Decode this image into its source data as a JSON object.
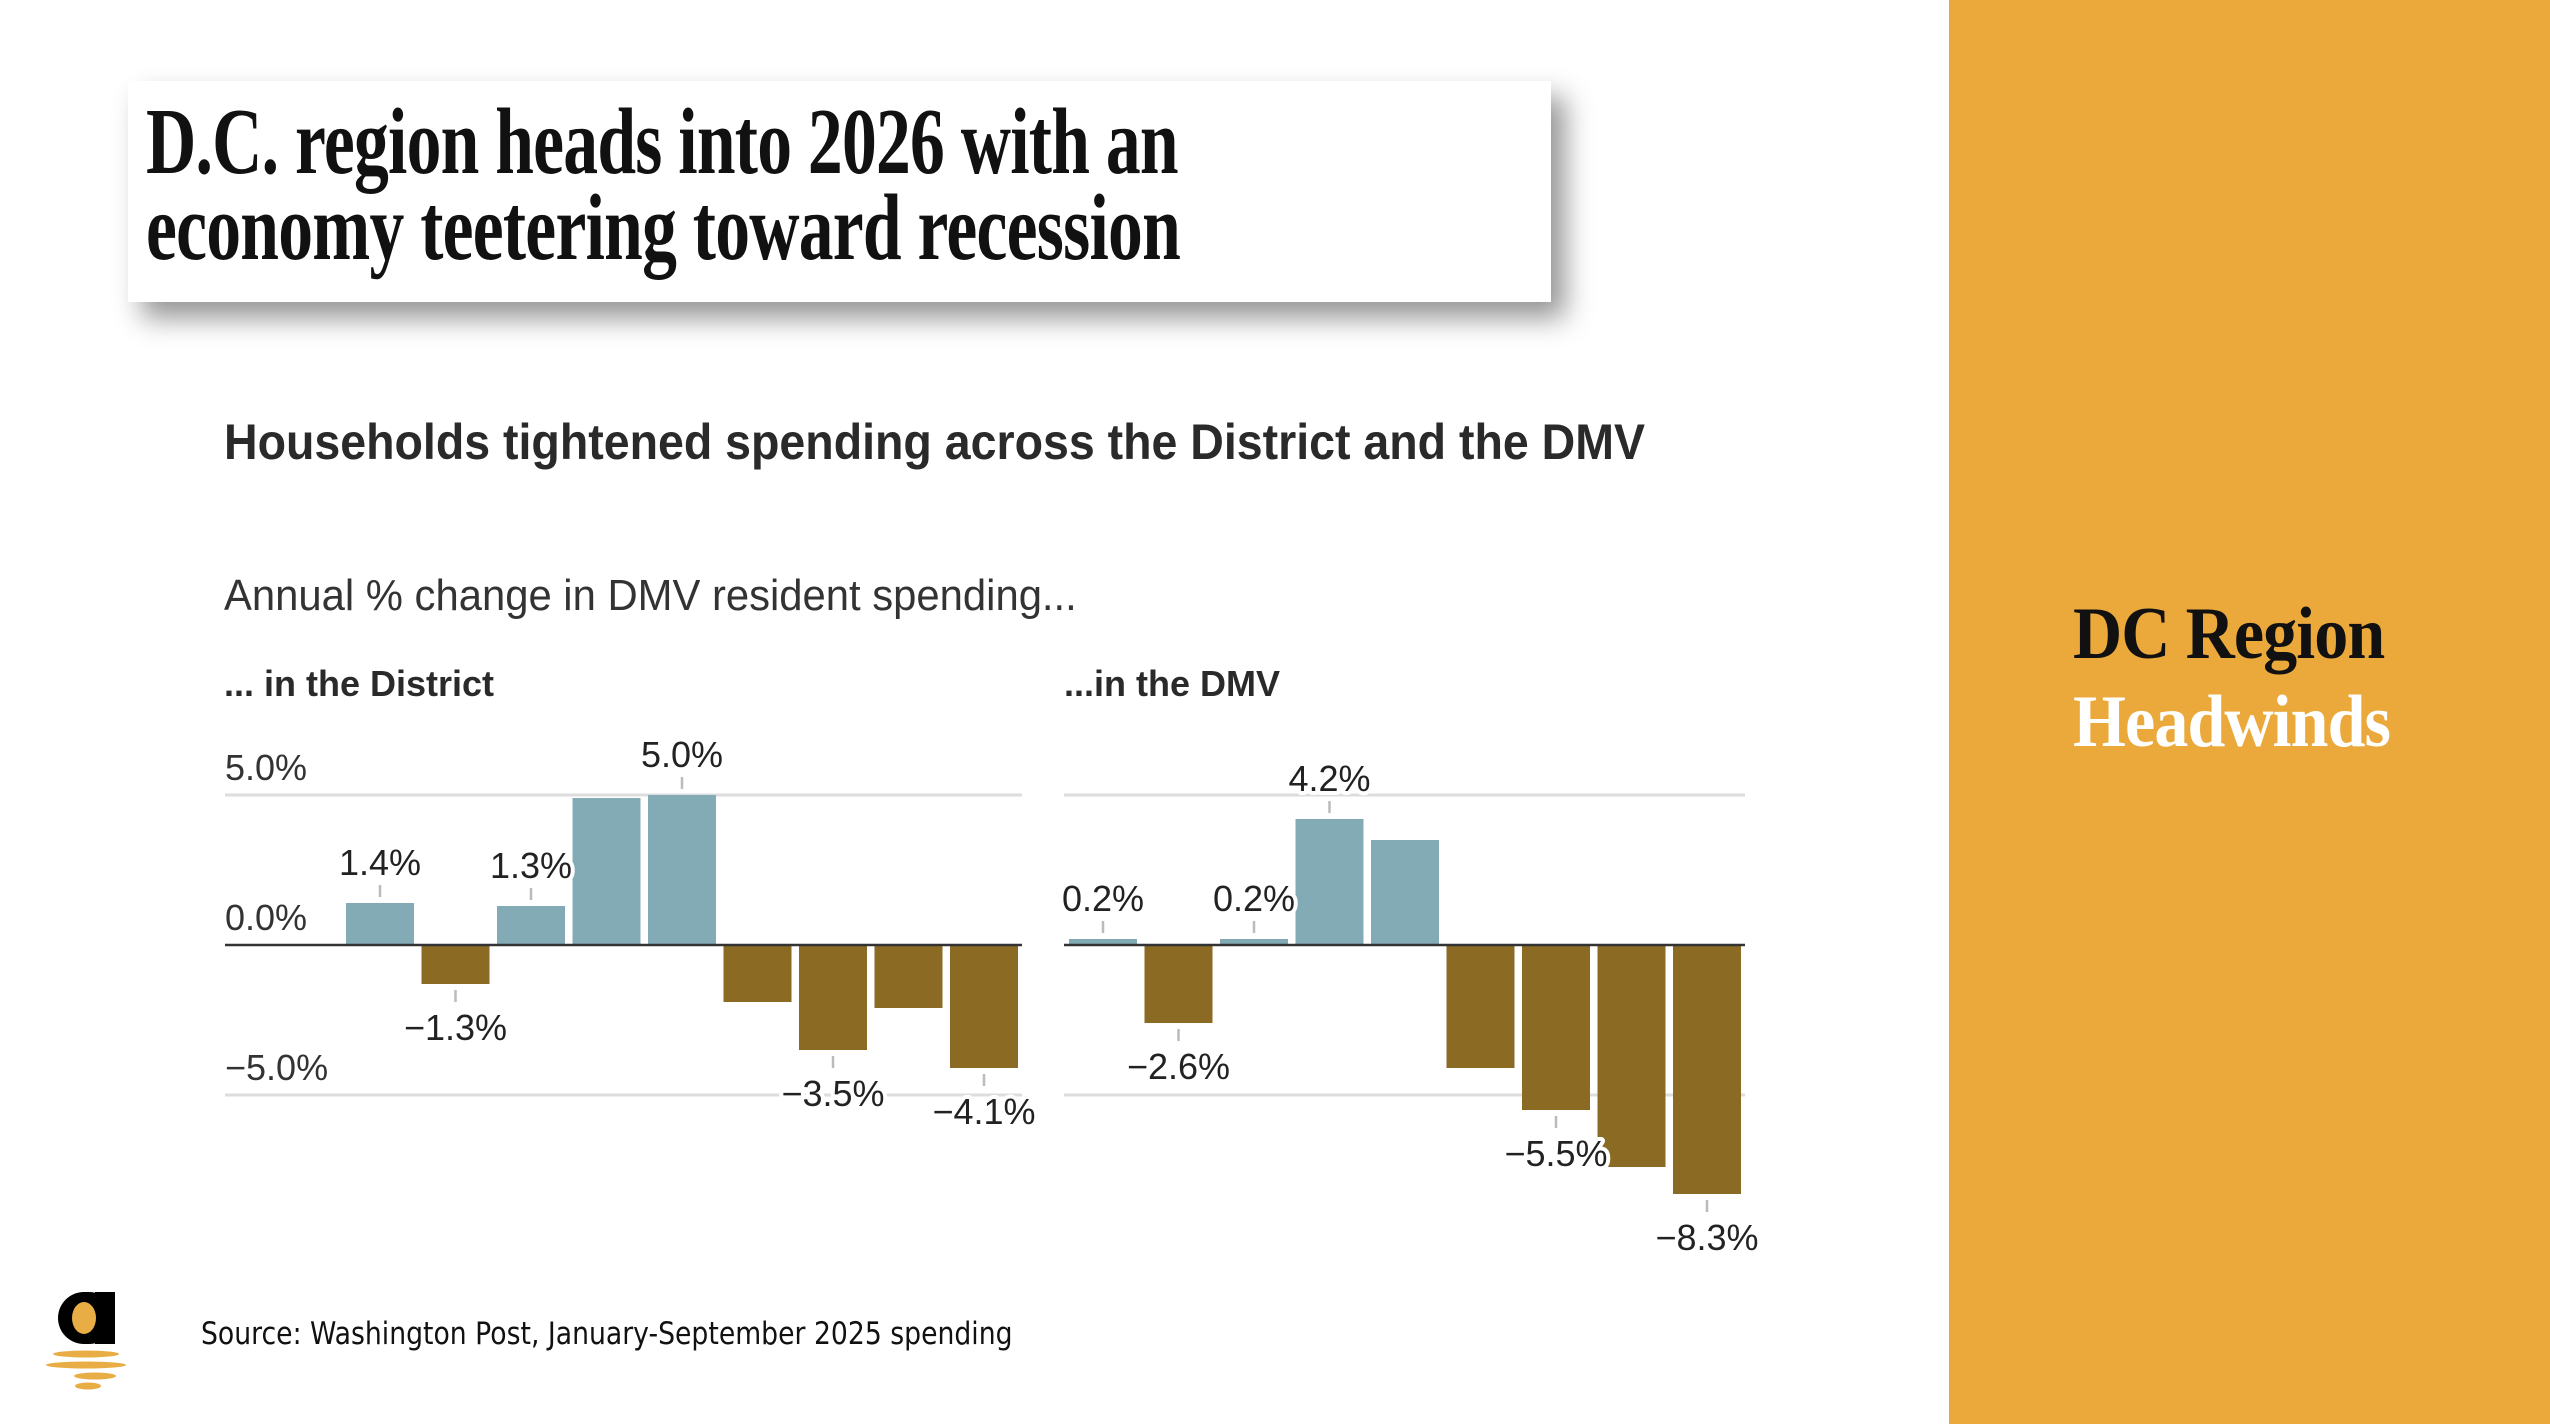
{
  "headline": {
    "line1": "D.C. region heads into 2026 with an",
    "line2": "economy teetering toward recession"
  },
  "side_panel": {
    "line1": "DC Region",
    "line2": "Headwinds",
    "background_color": "#EBA93C"
  },
  "logo": {
    "icon": "letter-a-sunset-logo-icon"
  },
  "source": "Source: Washington Post, January-September 2025 spending",
  "colors": {
    "positive": "#83ABB5",
    "negative": "#8B6A24"
  },
  "chart_data": {
    "type": "bar",
    "title": "Households tightened spending across the District and the DMV",
    "subtitle": "Annual % change in DMV resident spending...",
    "ylim": [
      -5,
      5
    ],
    "yticks": [
      5,
      0,
      -5
    ],
    "ytick_labels": [
      "5.0%",
      "0.0%",
      "−5.0%"
    ],
    "grid": true,
    "panels": [
      {
        "name": "... in the District",
        "values": [
          1.4,
          -1.3,
          1.3,
          4.9,
          5.0,
          -1.9,
          -3.5,
          -2.1,
          -4.1
        ],
        "labels": [
          "1.4%",
          "−1.3%",
          "1.3%",
          "",
          "5.0%",
          "",
          "−3.5%",
          "",
          "−4.1%"
        ],
        "show_y_labels": true
      },
      {
        "name": "...in the DMV",
        "values": [
          0.2,
          -2.6,
          0.2,
          4.2,
          3.5,
          -4.1,
          -5.5,
          -7.4,
          -8.3
        ],
        "labels": [
          "0.2%",
          "−2.6%",
          "0.2%",
          "4.2%",
          "",
          "",
          "−5.5%",
          "",
          "−8.3%"
        ],
        "show_y_labels": false
      }
    ]
  }
}
